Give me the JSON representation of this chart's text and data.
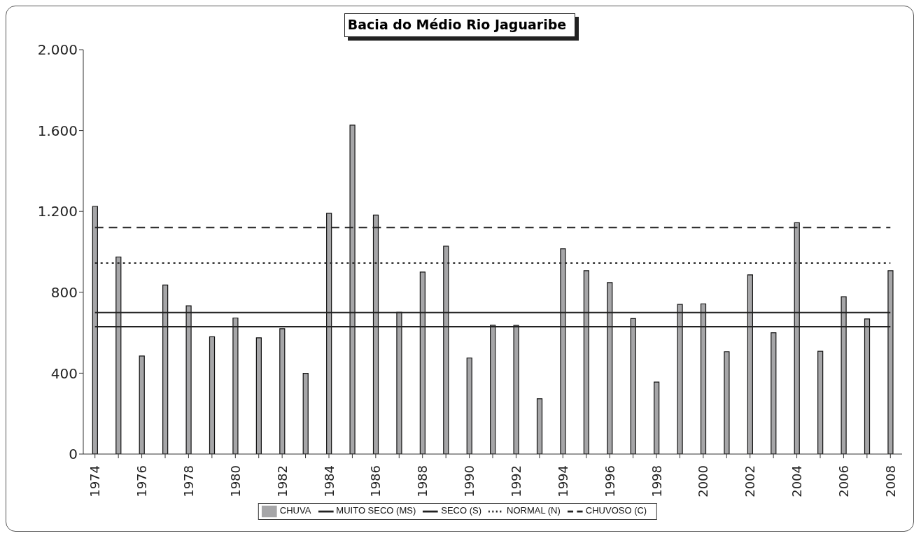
{
  "chart_data": {
    "type": "bar",
    "title": "Bacia do Médio Rio Jaguaribe",
    "categories": [
      "1974",
      null,
      "1976",
      null,
      "1978",
      null,
      "1980",
      null,
      "1982",
      null,
      "1984",
      null,
      "1986",
      null,
      "1988",
      null,
      "1990",
      null,
      "1992",
      null,
      "1994",
      null,
      "1996",
      null,
      "1998",
      null,
      "2000",
      null,
      "2002",
      null,
      "2004",
      null,
      "2006",
      null,
      "2008"
    ],
    "series": [
      {
        "name": "CHUVA",
        "color": "#a6a6a8",
        "values": [
          1225,
          975,
          485,
          836,
          733,
          580,
          673,
          575,
          620,
          399,
          1191,
          1627,
          1182,
          701,
          900,
          1028,
          475,
          637,
          636,
          274,
          1015,
          907,
          848,
          670,
          356,
          740,
          743,
          506,
          886,
          600,
          1144,
          508,
          778,
          668,
          907
        ]
      },
      {
        "name": "MUITO SECO (MS)",
        "type": "line",
        "color": "#222222",
        "line_style": "solid",
        "values": [
          630,
          630,
          630,
          630,
          630,
          630,
          630,
          630,
          630,
          630,
          630,
          630,
          630,
          630,
          630,
          630,
          630,
          630,
          630,
          630,
          630,
          630,
          630,
          630,
          630,
          630,
          630,
          630,
          630,
          630,
          630,
          630,
          630,
          630,
          630
        ]
      },
      {
        "name": "SECO (S)",
        "type": "line",
        "color": "#222222",
        "line_style": "solid",
        "values": [
          700,
          700,
          700,
          700,
          700,
          700,
          700,
          700,
          700,
          700,
          700,
          700,
          700,
          700,
          700,
          700,
          700,
          700,
          700,
          700,
          700,
          700,
          700,
          700,
          700,
          700,
          700,
          700,
          700,
          700,
          700,
          700,
          700,
          700,
          700
        ]
      },
      {
        "name": "NORMAL (N)",
        "type": "line",
        "color": "#222222",
        "line_style": "dotted",
        "values": [
          945,
          945,
          945,
          945,
          945,
          945,
          945,
          945,
          945,
          945,
          945,
          945,
          945,
          945,
          945,
          945,
          945,
          945,
          945,
          945,
          945,
          945,
          945,
          945,
          945,
          945,
          945,
          945,
          945,
          945,
          945,
          945,
          945,
          945,
          945
        ]
      },
      {
        "name": "CHUVOSO (C)",
        "type": "line",
        "color": "#222222",
        "line_style": "dashed",
        "values": [
          1120,
          1120,
          1120,
          1120,
          1120,
          1120,
          1120,
          1120,
          1120,
          1120,
          1120,
          1120,
          1120,
          1120,
          1120,
          1120,
          1120,
          1120,
          1120,
          1120,
          1120,
          1120,
          1120,
          1120,
          1120,
          1120,
          1120,
          1120,
          1120,
          1120,
          1120,
          1120,
          1120,
          1120,
          1120
        ]
      }
    ],
    "ylim": [
      0,
      2000
    ],
    "yticks": [
      0,
      400,
      800,
      {
        "value": 1200,
        "label": "1.200"
      },
      {
        "value": 1600,
        "label": "1.600"
      },
      {
        "value": 2000,
        "label": "2.000"
      }
    ],
    "legend": "bottom"
  }
}
